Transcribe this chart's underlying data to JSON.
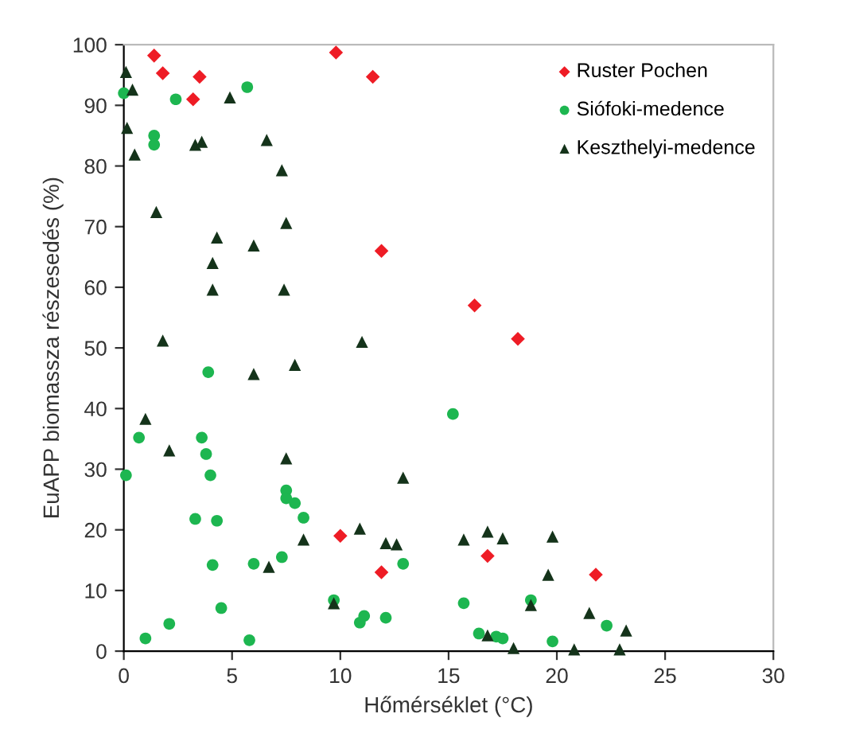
{
  "chart_data": {
    "type": "scatter",
    "xlabel": "Hőmérséklet (°C)",
    "ylabel": "EuAPP biomassza részesedés (%)",
    "xlim": [
      0,
      30
    ],
    "ylim": [
      0,
      100
    ],
    "xticks": [
      0,
      5,
      10,
      15,
      20,
      25,
      30
    ],
    "yticks": [
      0,
      10,
      20,
      30,
      40,
      50,
      60,
      70,
      80,
      90,
      100
    ],
    "grid": false,
    "legend": "top right",
    "series": [
      {
        "name": "Ruster Pochen",
        "color": "#ee1c25",
        "marker": "diamond",
        "x": [
          1.4,
          1.8,
          3.5,
          3.2,
          9.8,
          11.5,
          11.9,
          16.2,
          18.2,
          10.0,
          11.9,
          16.8,
          21.8
        ],
        "values": [
          98.2,
          95.3,
          94.7,
          91,
          98.7,
          94.7,
          66,
          57,
          51.5,
          19,
          13,
          15.7,
          12.6
        ]
      },
      {
        "name": "Siófoki-medence",
        "color": "#1db650",
        "marker": "circle",
        "x": [
          0,
          2.4,
          5.7,
          1.4,
          1.4,
          3.9,
          0.7,
          3.6,
          3.8,
          4.0,
          0.1,
          3.3,
          4.3,
          7.5,
          7.5,
          7.9,
          8.3,
          7.3,
          6.0,
          4.1,
          4.5,
          9.7,
          2.1,
          1.0,
          5.8,
          15.2,
          12.9,
          10.9,
          11.1,
          12.1,
          15.7,
          16.4,
          17.2,
          17.5,
          18.8,
          19.8,
          22.3
        ],
        "values": [
          92,
          91,
          93,
          85,
          83.5,
          46,
          35.2,
          35.2,
          32.5,
          29,
          29,
          21.8,
          21.5,
          26.5,
          25.2,
          24.4,
          22,
          15.5,
          14.4,
          14.2,
          7.1,
          8.4,
          4.5,
          2.1,
          1.8,
          39.1,
          14.4,
          4.7,
          5.8,
          5.5,
          7.9,
          2.9,
          2.4,
          2.1,
          8.4,
          1.6,
          4.2
        ]
      },
      {
        "name": "Keszthelyi-medence",
        "color": "#14331a",
        "marker": "triangle",
        "x": [
          0.1,
          0.4,
          0.15,
          4.9,
          3.3,
          3.6,
          6.6,
          0.5,
          7.3,
          1.5,
          7.5,
          4.3,
          6.0,
          4.1,
          4.1,
          7.4,
          1.8,
          6.0,
          7.9,
          1.0,
          2.1,
          7.5,
          8.3,
          6.7,
          9.7,
          11.0,
          12.9,
          10.9,
          12.1,
          12.6,
          15.7,
          16.8,
          17.5,
          19.8,
          19.6,
          18.8,
          21.5,
          23.2,
          16.8,
          18.0,
          20.8,
          22.9
        ],
        "values": [
          95.5,
          92.6,
          86.3,
          91.3,
          83.5,
          84,
          84.3,
          81.9,
          79.3,
          72.4,
          70.6,
          68.2,
          66.9,
          64,
          59.6,
          59.6,
          51.2,
          45.7,
          47.2,
          38.3,
          33.1,
          31.8,
          18.4,
          13.9,
          7.9,
          51,
          28.6,
          20.2,
          17.8,
          17.6,
          18.4,
          19.7,
          18.6,
          18.9,
          12.6,
          7.6,
          6.3,
          3.4,
          2.6,
          0.5,
          0.3,
          0.3
        ]
      }
    ]
  }
}
